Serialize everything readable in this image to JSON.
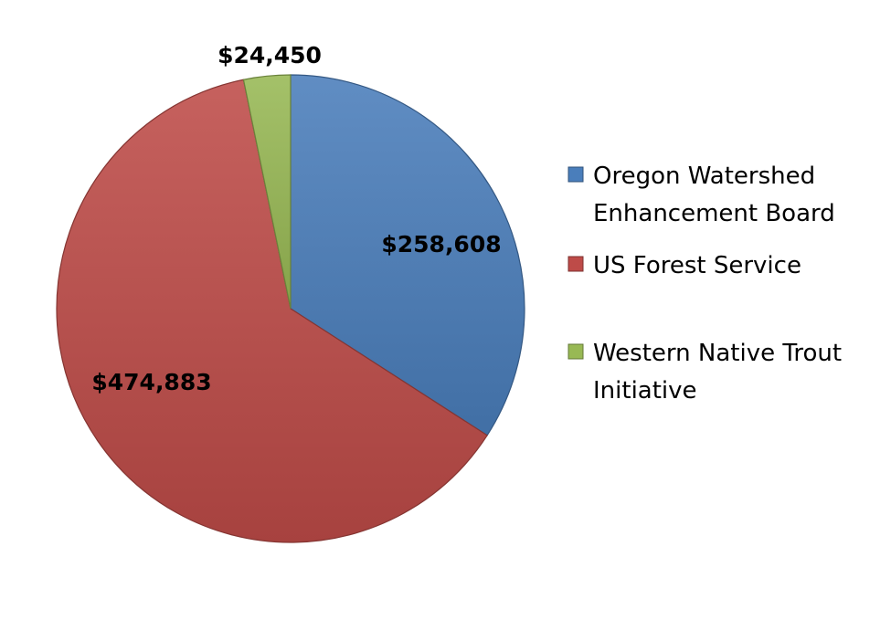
{
  "chart_data": {
    "type": "pie",
    "categories": [
      "Oregon Watershed Enhancement Board",
      "US Forest Service",
      "Western Native Trout Initiative"
    ],
    "values": [
      258608,
      474883,
      24450
    ],
    "data_labels": [
      "$258,608",
      "$474,883",
      "$24,450"
    ],
    "colors": [
      "#4A7EBB",
      "#BE4B48",
      "#98B954"
    ],
    "legend": {
      "placement": "right",
      "entries": [
        {
          "lines": [
            "Oregon Watershed",
            "Enhancement Board"
          ],
          "color": "#4A7EBB"
        },
        {
          "lines": [
            "US Forest Service"
          ],
          "color": "#BE4B48"
        },
        {
          "lines": [
            "Western Native Trout",
            "Initiative"
          ],
          "color": "#98B954"
        }
      ]
    },
    "title": ""
  }
}
